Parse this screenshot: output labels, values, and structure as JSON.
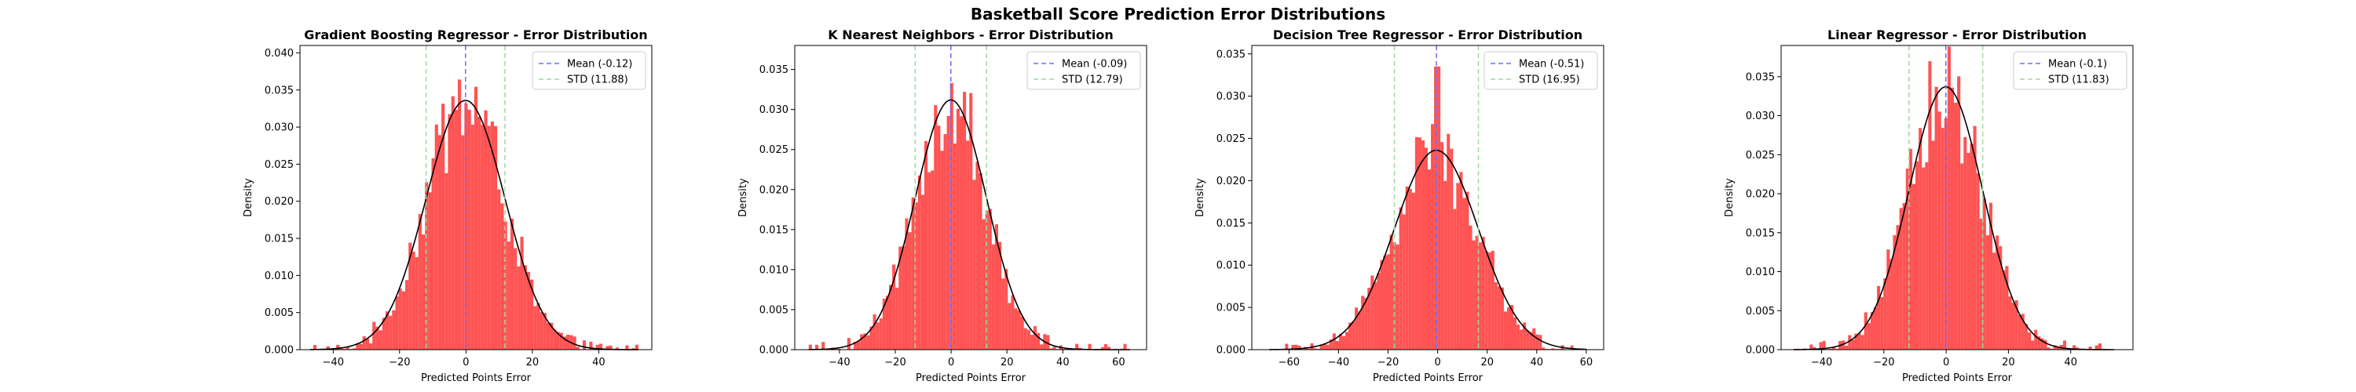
{
  "figure": {
    "suptitle": "Basketball Score Prediction Error Distributions"
  },
  "colors": {
    "bar": "#ff4a4a",
    "kde": "#000000",
    "mean_line": "#6b6bff",
    "std_line": "#9ed99e"
  },
  "chart_data": [
    {
      "type": "bar",
      "title": "Gradient Boosting Regressor - Error Distribution",
      "xlabel": "Predicted Points Error",
      "ylabel": "Density",
      "xlim": [
        -50,
        56
      ],
      "ylim": [
        0,
        0.041
      ],
      "xticks": [
        -40,
        -20,
        0,
        20,
        40
      ],
      "yticks": [
        0,
        0.005,
        0.01,
        0.015,
        0.02,
        0.025,
        0.03,
        0.035,
        0.04
      ],
      "ytick_labels": [
        "0.000",
        "0.005",
        "0.010",
        "0.015",
        "0.020",
        "0.025",
        "0.030",
        "0.035",
        "0.040"
      ],
      "mean": -0.12,
      "std": 11.88,
      "kde_peak": 0.0336,
      "data_min": -47,
      "data_max": 52,
      "legend": {
        "position": "top-right",
        "mean_label": "Mean (-0.12)",
        "std_label": "STD (11.88)"
      },
      "grid": false
    },
    {
      "type": "bar",
      "title": "K Nearest Neighbors - Error Distribution",
      "xlabel": "Predicted Points Error",
      "ylabel": "Density",
      "xlim": [
        -56,
        70
      ],
      "ylim": [
        0,
        0.038
      ],
      "xticks": [
        -40,
        -20,
        0,
        20,
        40,
        60
      ],
      "yticks": [
        0,
        0.005,
        0.01,
        0.015,
        0.02,
        0.025,
        0.03,
        0.035
      ],
      "ytick_labels": [
        "0.000",
        "0.005",
        "0.010",
        "0.015",
        "0.020",
        "0.025",
        "0.030",
        "0.035"
      ],
      "mean": -0.09,
      "std": 12.79,
      "kde_peak": 0.0312,
      "data_min": -51,
      "data_max": 64,
      "legend": {
        "position": "top-right",
        "mean_label": "Mean (-0.09)",
        "std_label": "STD (12.79)"
      },
      "grid": false
    },
    {
      "type": "bar",
      "title": "Decision Tree Regressor - Error Distribution",
      "xlabel": "Predicted Points Error",
      "ylabel": "Density",
      "xlim": [
        -75,
        67
      ],
      "ylim": [
        0,
        0.036
      ],
      "xticks": [
        -60,
        -40,
        -20,
        0,
        20,
        40,
        60
      ],
      "yticks": [
        0,
        0.005,
        0.01,
        0.015,
        0.02,
        0.025,
        0.03,
        0.035
      ],
      "ytick_labels": [
        "0.000",
        "0.005",
        "0.010",
        "0.015",
        "0.020",
        "0.025",
        "0.030",
        "0.035"
      ],
      "mean": -0.51,
      "std": 16.95,
      "kde_peak": 0.0236,
      "data_min": -68,
      "data_max": 60,
      "legend": {
        "position": "top-right",
        "mean_label": "Mean (-0.51)",
        "std_label": "STD (16.95)"
      },
      "grid": false
    },
    {
      "type": "bar",
      "title": "Linear Regressor - Error Distribution",
      "xlabel": "Predicted Points Error",
      "ylabel": "Density",
      "xlim": [
        -53,
        60
      ],
      "ylim": [
        0,
        0.039
      ],
      "xticks": [
        -40,
        -20,
        0,
        20,
        40
      ],
      "yticks": [
        0,
        0.005,
        0.01,
        0.015,
        0.02,
        0.025,
        0.03,
        0.035
      ],
      "ytick_labels": [
        "0.000",
        "0.005",
        "0.010",
        "0.015",
        "0.020",
        "0.025",
        "0.030",
        "0.035"
      ],
      "mean": -0.1,
      "std": 11.83,
      "kde_peak": 0.0337,
      "data_min": -49,
      "data_max": 54,
      "legend": {
        "position": "top-right",
        "mean_label": "Mean (-0.1)",
        "std_label": "STD (11.83)"
      },
      "grid": false
    }
  ]
}
